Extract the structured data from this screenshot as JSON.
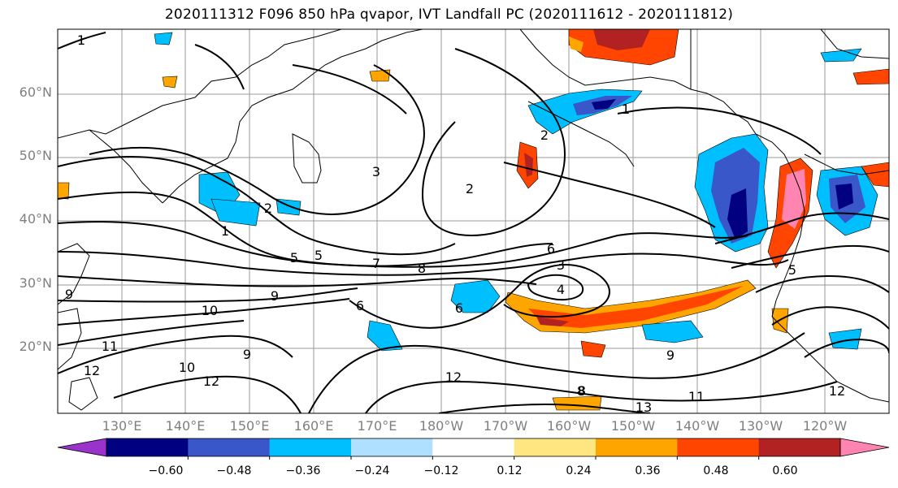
{
  "title": "2020111312 F096 850 hPa qvapor, IVT Landfall PC (2020111612 - 2020111812)",
  "lat_labels": [
    "60°N",
    "50°N",
    "40°N",
    "30°N",
    "20°N"
  ],
  "lon_labels": [
    "130°E",
    "140°E",
    "150°E",
    "160°E",
    "170°E",
    "180°W",
    "170°W",
    "160°W",
    "150°W",
    "140°W",
    "130°W",
    "120°W"
  ],
  "colorbar": {
    "ticks": [
      "−0.60",
      "−0.48",
      "−0.36",
      "−0.24",
      "−0.12",
      "0.12",
      "0.24",
      "0.36",
      "0.48",
      "0.60"
    ],
    "colors": [
      "#9933cc",
      "#000080",
      "#3a57c9",
      "#00bfff",
      "#b0e0ff",
      "#ffffff",
      "#ffe680",
      "#ffa500",
      "#ff4500",
      "#b22222",
      "#ff85b0"
    ]
  },
  "contour_labels": [
    {
      "text": "1"
    },
    {
      "text": "2"
    },
    {
      "text": "2"
    },
    {
      "text": "3"
    },
    {
      "text": "1"
    },
    {
      "text": "5"
    },
    {
      "text": "5"
    },
    {
      "text": "7"
    },
    {
      "text": "8"
    },
    {
      "text": "6"
    },
    {
      "text": "9"
    },
    {
      "text": "9"
    },
    {
      "text": "10"
    },
    {
      "text": "6"
    },
    {
      "text": "10"
    },
    {
      "text": "11"
    },
    {
      "text": "12"
    },
    {
      "text": "12"
    },
    {
      "text": "9"
    },
    {
      "text": "12"
    },
    {
      "text": "4"
    },
    {
      "text": "6"
    },
    {
      "text": "3"
    },
    {
      "text": "9"
    },
    {
      "text": "8"
    },
    {
      "text": "13"
    },
    {
      "text": "11"
    },
    {
      "text": "12"
    },
    {
      "text": "5"
    },
    {
      "text": "1"
    },
    {
      "text": "2"
    },
    {
      "text": "8"
    }
  ]
}
